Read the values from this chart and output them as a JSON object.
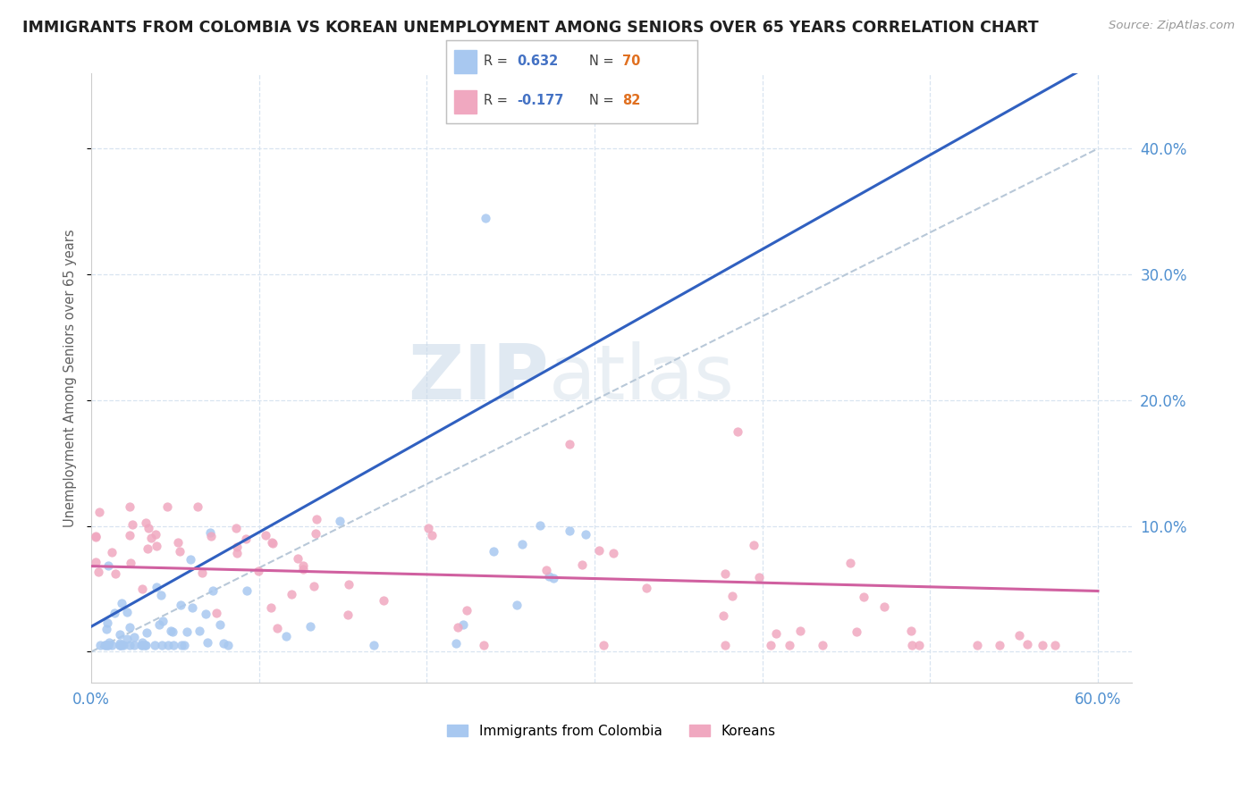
{
  "title": "IMMIGRANTS FROM COLOMBIA VS KOREAN UNEMPLOYMENT AMONG SENIORS OVER 65 YEARS CORRELATION CHART",
  "source": "Source: ZipAtlas.com",
  "ylabel": "Unemployment Among Seniors over 65 years",
  "xlim": [
    0.0,
    0.62
  ],
  "ylim": [
    -0.025,
    0.46
  ],
  "yticks_right": [
    0.1,
    0.2,
    0.3,
    0.4
  ],
  "ytick_labels_right": [
    "10.0%",
    "20.0%",
    "30.0%",
    "40.0%"
  ],
  "xtick_labels": [
    "0.0%",
    "60.0%"
  ],
  "xtick_pos": [
    0.0,
    0.6
  ],
  "series1_color": "#a8c8f0",
  "series2_color": "#f0a8c0",
  "series1_label": "Immigrants from Colombia",
  "series2_label": "Koreans",
  "series1_R": "0.632",
  "series1_N": "70",
  "series2_R": "-0.177",
  "series2_N": "82",
  "legend_R_color": "#4472c4",
  "legend_N_color": "#e07020",
  "trendline1_color": "#3060c0",
  "trendline2_color": "#d060a0",
  "diagonal_color": "#b8c8d8",
  "grid_color": "#d8e4f0",
  "watermark_zip": "ZIP",
  "watermark_atlas": "atlas",
  "background_color": "#ffffff",
  "title_color": "#202020",
  "axis_label_color": "#606060",
  "tick_color": "#5090d0"
}
